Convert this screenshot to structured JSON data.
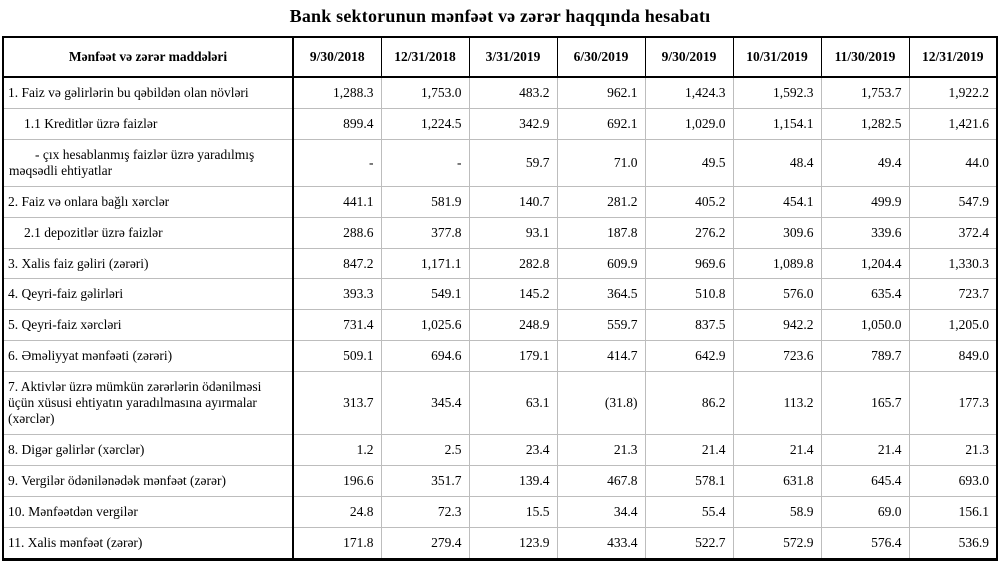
{
  "title": "Bank sektorunun mənfəət və zərər haqqında hesabatı",
  "table": {
    "header": {
      "label_column": "Mənfəət və zərər maddələri",
      "date_columns": [
        "9/30/2018",
        "12/31/2018",
        "3/31/2019",
        "6/30/2019",
        "9/30/2019",
        "10/31/2019",
        "11/30/2019",
        "12/31/2019"
      ]
    },
    "rows": [
      {
        "label": "1. Faiz və gəlirlərin bu qəbildən olan növləri",
        "level": 0,
        "values": [
          "1,288.3",
          "1,753.0",
          "483.2",
          "962.1",
          "1,424.3",
          "1,592.3",
          "1,753.7",
          "1,922.2"
        ]
      },
      {
        "label": "1.1 Kreditlər üzrə faizlər",
        "level": 1,
        "values": [
          "899.4",
          "1,224.5",
          "342.9",
          "692.1",
          "1,029.0",
          "1,154.1",
          "1,282.5",
          "1,421.6"
        ]
      },
      {
        "label": "- çıx hesablanmış faizlər üzrə yaradılmış məqsədli ehtiyatlar",
        "level": 2,
        "values": [
          "-",
          "-",
          "59.7",
          "71.0",
          "49.5",
          "48.4",
          "49.4",
          "44.0"
        ]
      },
      {
        "label": "2. Faiz və onlara bağlı xərclər",
        "level": 0,
        "values": [
          "441.1",
          "581.9",
          "140.7",
          "281.2",
          "405.2",
          "454.1",
          "499.9",
          "547.9"
        ]
      },
      {
        "label": "2.1 depozitlər üzrə faizlər",
        "level": 1,
        "values": [
          "288.6",
          "377.8",
          "93.1",
          "187.8",
          "276.2",
          "309.6",
          "339.6",
          "372.4"
        ]
      },
      {
        "label": "3. Xalis faiz gəliri (zərəri)",
        "level": 0,
        "values": [
          "847.2",
          "1,171.1",
          "282.8",
          "609.9",
          "969.6",
          "1,089.8",
          "1,204.4",
          "1,330.3"
        ]
      },
      {
        "label": "4. Qeyri-faiz gəlirləri",
        "level": 0,
        "values": [
          "393.3",
          "549.1",
          "145.2",
          "364.5",
          "510.8",
          "576.0",
          "635.4",
          "723.7"
        ]
      },
      {
        "label": "5. Qeyri-faiz xərcləri",
        "level": 0,
        "values": [
          "731.4",
          "1,025.6",
          "248.9",
          "559.7",
          "837.5",
          "942.2",
          "1,050.0",
          "1,205.0"
        ]
      },
      {
        "label": "6. Əməliyyat mənfəəti (zərəri)",
        "level": 0,
        "values": [
          "509.1",
          "694.6",
          "179.1",
          "414.7",
          "642.9",
          "723.6",
          "789.7",
          "849.0"
        ]
      },
      {
        "label": "7. Aktivlər üzrə mümkün zərərlərin ödənilməsi üçün xüsusi ehtiyatın yaradılmasına ayırmalar (xərclər)",
        "level": 0,
        "values": [
          "313.7",
          "345.4",
          "63.1",
          "(31.8)",
          "86.2",
          "113.2",
          "165.7",
          "177.3"
        ]
      },
      {
        "label": "8. Digər gəlirlər (xərclər)",
        "level": 0,
        "values": [
          "1.2",
          "2.5",
          "23.4",
          "21.3",
          "21.4",
          "21.4",
          "21.4",
          "21.3"
        ]
      },
      {
        "label": "9. Vergilər ödənilənədək mənfəət (zərər)",
        "level": 0,
        "values": [
          "196.6",
          "351.7",
          "139.4",
          "467.8",
          "578.1",
          "631.8",
          "645.4",
          "693.0"
        ]
      },
      {
        "label": "10. Mənfəətdən vergilər",
        "level": 0,
        "values": [
          "24.8",
          "72.3",
          "15.5",
          "34.4",
          "55.4",
          "58.9",
          "69.0",
          "156.1"
        ]
      },
      {
        "label": "11. Xalis mənfəət (zərər)",
        "level": 0,
        "values": [
          "171.8",
          "279.4",
          "123.9",
          "433.4",
          "522.7",
          "572.9",
          "576.4",
          "536.9"
        ]
      }
    ]
  }
}
